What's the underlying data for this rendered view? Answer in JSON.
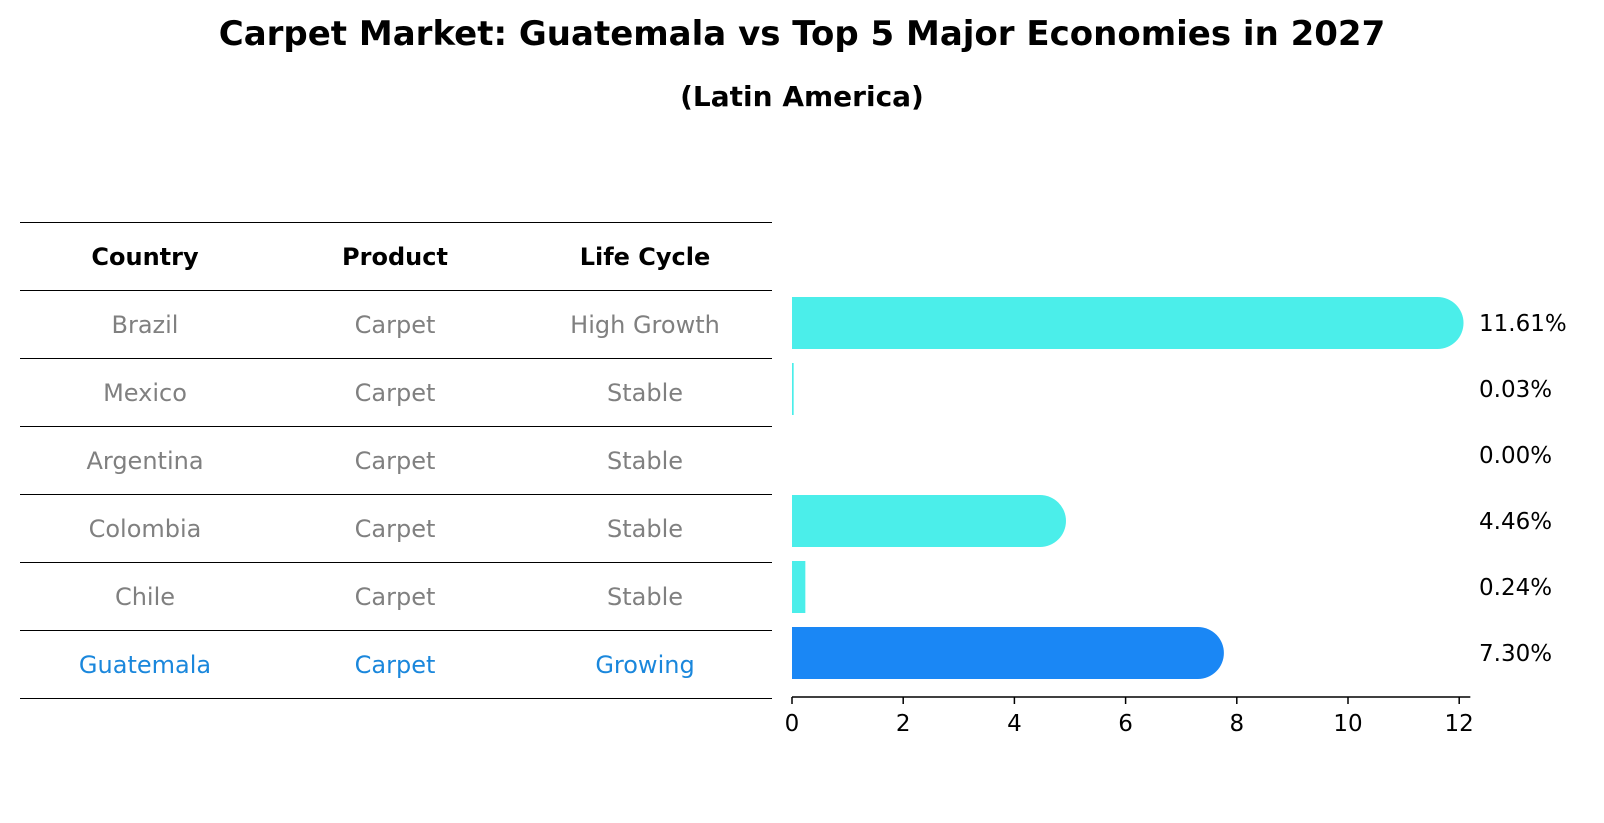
{
  "title": "Carpet Market: Guatemala vs Top 5 Major Economies in 2027",
  "subtitle": "(Latin America)",
  "table": {
    "headers": [
      "Country",
      "Product",
      "Life Cycle"
    ],
    "rows": [
      {
        "country": "Brazil",
        "product": "Carpet",
        "life_cycle": "High Growth"
      },
      {
        "country": "Mexico",
        "product": "Carpet",
        "life_cycle": "Stable"
      },
      {
        "country": "Argentina",
        "product": "Carpet",
        "life_cycle": "Stable"
      },
      {
        "country": "Colombia",
        "product": "Carpet",
        "life_cycle": "Stable"
      },
      {
        "country": "Chile",
        "product": "Carpet",
        "life_cycle": "Stable"
      },
      {
        "country": "Guatemala",
        "product": "Carpet",
        "life_cycle": "Growing"
      }
    ],
    "highlight_row": "Guatemala"
  },
  "colors": {
    "bar": "#4beeea",
    "highlight_bar": "#1a87f5",
    "highlight_text": "#1a87dc",
    "body_text": "#808080"
  },
  "chart_data": {
    "type": "bar",
    "orientation": "horizontal",
    "categories": [
      "Brazil",
      "Mexico",
      "Argentina",
      "Colombia",
      "Chile",
      "Guatemala"
    ],
    "values": [
      11.61,
      0.03,
      0.0,
      4.46,
      0.24,
      7.3
    ],
    "value_labels": [
      "11.61%",
      "0.03%",
      "0.00%",
      "4.46%",
      "0.24%",
      "7.30%"
    ],
    "highlight": "Guatemala",
    "xlim": [
      0,
      12.2
    ],
    "xticks": [
      0,
      2,
      4,
      6,
      8,
      10,
      12
    ],
    "grid": false
  }
}
